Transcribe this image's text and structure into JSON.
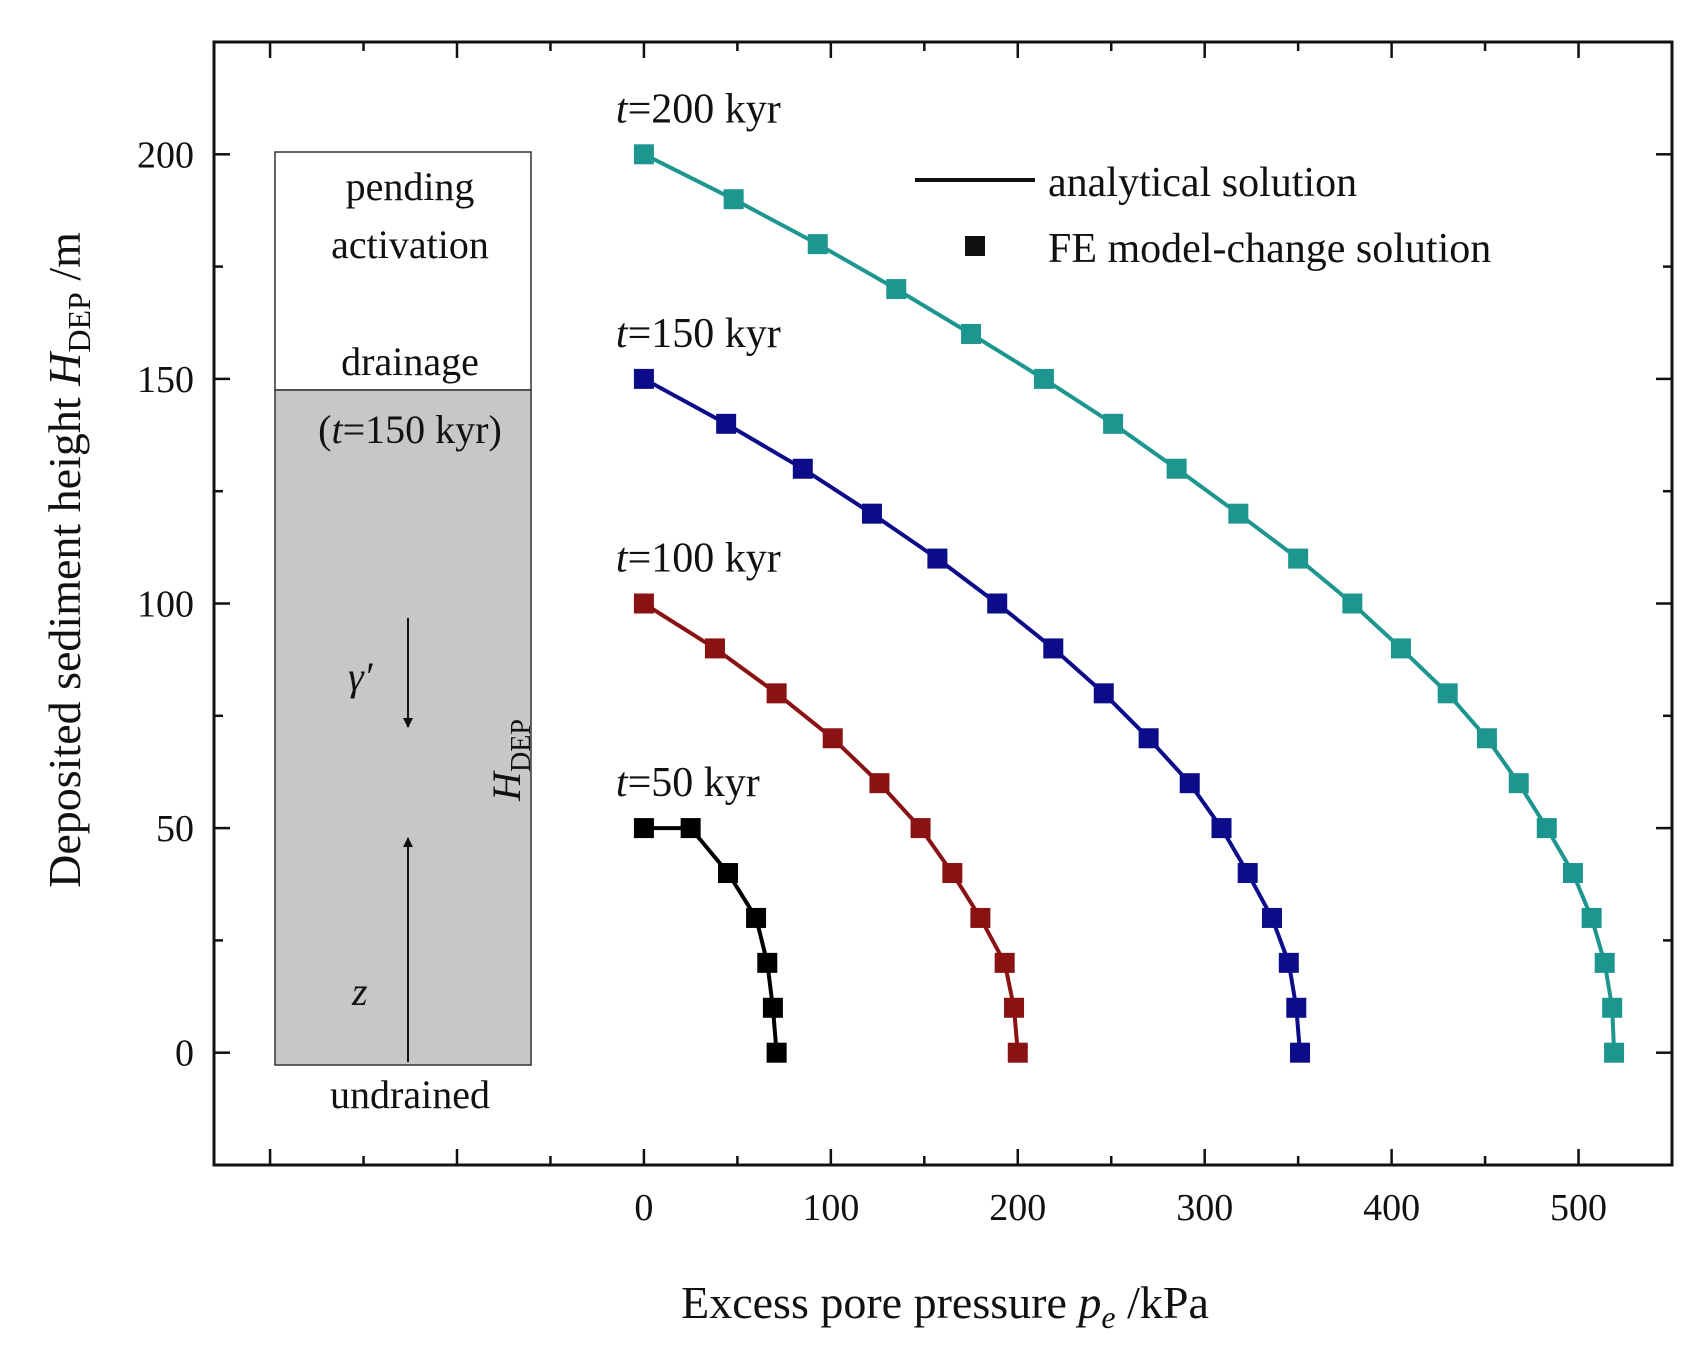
{
  "chart_data": {
    "type": "line",
    "xlabel": {
      "main": "Excess pore pressure ",
      "var": "p",
      "sub": "e",
      "unit": " /kPa"
    },
    "ylabel": {
      "main": "Deposited sediment height ",
      "var": "H",
      "sub": "DEP",
      "unit": " /m"
    },
    "xlim": [
      -230,
      550
    ],
    "ylim": [
      -25,
      225
    ],
    "xticks": [
      0,
      100,
      200,
      300,
      400,
      500
    ],
    "yticks": [
      0,
      50,
      100,
      150,
      200
    ],
    "legend": {
      "position": "top-right",
      "entries": [
        {
          "kind": "line",
          "label": "analytical solution"
        },
        {
          "kind": "marker",
          "label": "FE model-change solution"
        }
      ]
    },
    "series": [
      {
        "name": "t=50 kyr",
        "t_var": "t",
        "t_rest": "=50 kyr",
        "color": "#000000",
        "x": [
          71,
          69,
          66,
          60,
          45,
          25,
          0
        ],
        "y": [
          0,
          10,
          20,
          30,
          40,
          50,
          50
        ]
      },
      {
        "name": "t=100 kyr",
        "t_var": "t",
        "t_rest": "=100 kyr",
        "color": "#8B1212",
        "x": [
          200,
          198,
          193,
          180,
          165,
          148,
          126,
          101,
          71,
          38,
          0
        ],
        "y": [
          0,
          10,
          20,
          30,
          40,
          50,
          60,
          70,
          80,
          90,
          100
        ]
      },
      {
        "name": "t=150 kyr",
        "t_var": "t",
        "t_rest": "=150 kyr",
        "color": "#0C0C8A",
        "x": [
          351,
          349,
          345,
          336,
          323,
          309,
          292,
          270,
          246,
          219,
          189,
          157,
          122,
          85,
          44,
          0
        ],
        "y": [
          0,
          10,
          20,
          30,
          40,
          50,
          60,
          70,
          80,
          90,
          100,
          110,
          120,
          130,
          140,
          150
        ]
      },
      {
        "name": "t=200 kyr",
        "t_var": "t",
        "t_rest": "=200 kyr",
        "color": "#1E9690",
        "x": [
          519,
          518,
          514,
          507,
          497,
          483,
          468,
          451,
          430,
          405,
          379,
          350,
          318,
          285,
          251,
          214,
          175,
          135,
          93,
          48,
          0
        ],
        "y": [
          0,
          10,
          20,
          30,
          40,
          50,
          60,
          70,
          80,
          90,
          100,
          110,
          120,
          130,
          140,
          150,
          160,
          170,
          180,
          190,
          200
        ]
      }
    ]
  },
  "inset": {
    "pending": "pending",
    "activation": "activation",
    "drainage": "drainage",
    "t_open": "(",
    "t_var": "t",
    "t_rest": "=150 kyr)",
    "gamma": "γ′",
    "z": "z",
    "h_var": "H",
    "h_sub": "DEP",
    "undrained": "undrained"
  }
}
